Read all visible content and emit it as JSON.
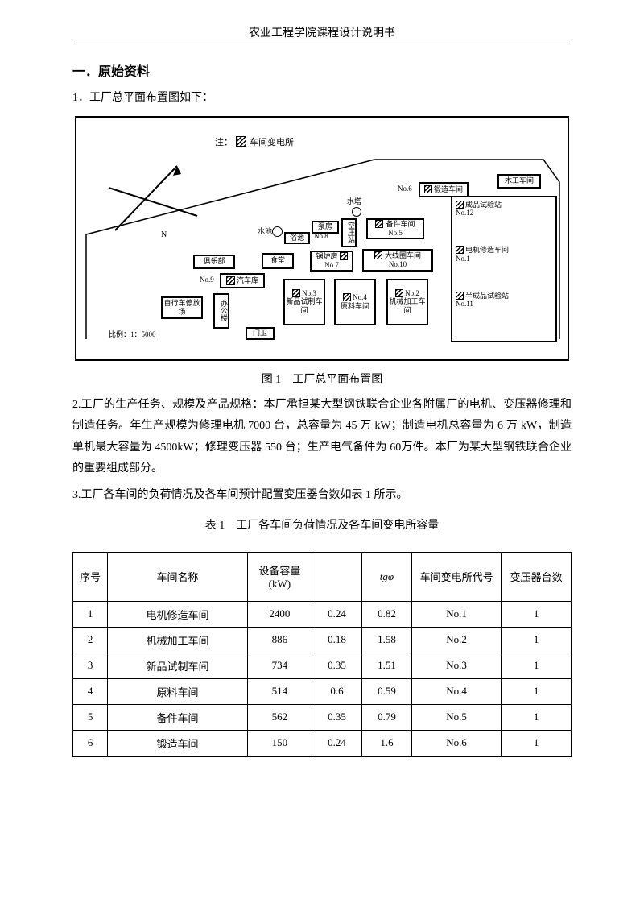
{
  "header": {
    "title": "农业工程学院课程设计说明书"
  },
  "section": {
    "h1": "一．原始资料",
    "line1": "1．工厂总平面布置图如下：",
    "caption1": "图 1　工厂总平面布置图",
    "para2": "2.工厂的生产任务、规模及产品规格：本厂承担某大型钢铁联合企业各附属厂的电机、变压器修理和制造任务。年生产规模为修理电机 7000 台，总容量为 45 万 kW；制造电机总容量为 6 万 kW，制造单机最大容量为 4500kW；修理变压器 550 台；生产电气备件为 60万件。本厂为某大型钢铁联合企业的重要组成部分。",
    "para3": "3.工厂各车间的负荷情况及各车间预计配置变压器台数如表 1 所示。",
    "caption2": "表 1　工厂各车间负荷情况及各车间变电所容量"
  },
  "figure": {
    "legend": "注：",
    "legend2": "车间变电所",
    "scale": "比例：1：5000",
    "N": "N",
    "tower": "水塔",
    "pool": "水池",
    "bath": "浴池",
    "pump": "泵房",
    "air": "空压站",
    "no8": "No.8",
    "boiler": "锅炉房",
    "no7": "No.7",
    "canteen": "食堂",
    "club": "俱乐部",
    "garage_no": "No.9",
    "garage": "汽车库",
    "bike": "自行车停放场",
    "office": "办公楼",
    "gate": "门卫",
    "bld3": "新品试制车间",
    "no3": "No.3",
    "bld4": "原料车间",
    "no4": "No.4",
    "bld2": "机械加工车间",
    "no2": "No.2",
    "spare": "备件车间",
    "no5": "No.5",
    "coil": "大线圈车间",
    "no10": "No.10",
    "forge": "锻造车间",
    "no6": "No.6",
    "wood": "木工车间",
    "finish": "成品试验站",
    "no12": "No.12",
    "motor": "电机修造车间",
    "no1": "No.1",
    "semi": "半成品试验站",
    "no11": "No.11"
  },
  "table": {
    "headers": {
      "c0": "序号",
      "c1": "车间名称",
      "c2": "设备容量(kW)",
      "c3": "",
      "c4": "tgφ",
      "c5": "车间变电所代号",
      "c6": "变压器台数"
    },
    "rows": [
      {
        "no": "1",
        "name": "电机修造车间",
        "cap": "2400",
        "v": "0.24",
        "tg": "0.82",
        "code": "No.1",
        "n": "1"
      },
      {
        "no": "2",
        "name": "机械加工车间",
        "cap": "886",
        "v": "0.18",
        "tg": "1.58",
        "code": "No.2",
        "n": "1"
      },
      {
        "no": "3",
        "name": "新品试制车间",
        "cap": "734",
        "v": "0.35",
        "tg": "1.51",
        "code": "No.3",
        "n": "1"
      },
      {
        "no": "4",
        "name": "原料车间",
        "cap": "514",
        "v": "0.6",
        "tg": "0.59",
        "code": "No.4",
        "n": "1"
      },
      {
        "no": "5",
        "name": "备件车间",
        "cap": "562",
        "v": "0.35",
        "tg": "0.79",
        "code": "No.5",
        "n": "1"
      },
      {
        "no": "6",
        "name": "锻造车间",
        "cap": "150",
        "v": "0.24",
        "tg": "1.6",
        "code": "No.6",
        "n": "1"
      }
    ],
    "col_widths": [
      "7%",
      "28%",
      "13%",
      "10%",
      "10%",
      "18%",
      "14%"
    ]
  }
}
